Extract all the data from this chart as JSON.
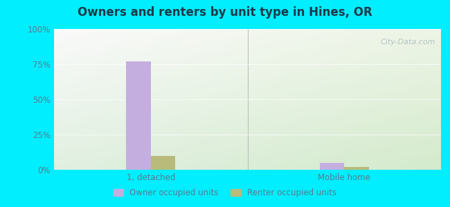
{
  "title": "Owners and renters by unit type in Hines, OR",
  "categories": [
    "1, detached",
    "Mobile home"
  ],
  "owner_values": [
    77.0,
    5.0
  ],
  "renter_values": [
    10.0,
    2.0
  ],
  "owner_color": "#c4aee0",
  "renter_color": "#b8bb7a",
  "ylim": [
    0,
    100
  ],
  "yticks": [
    0,
    25,
    50,
    75,
    100
  ],
  "ytick_labels": [
    "0%",
    "25%",
    "50%",
    "75%",
    "100%"
  ],
  "background_outer": "#00eeff",
  "watermark": "City-Data.com",
  "legend_labels": [
    "Owner occupied units",
    "Renter occupied units"
  ],
  "bar_width": 0.38,
  "group_positions": [
    1.5,
    4.5
  ],
  "xlim": [
    0,
    6.0
  ],
  "separator_x": 3.0,
  "title_color": "#1a3a4a",
  "tick_color": "#5a7a8a"
}
